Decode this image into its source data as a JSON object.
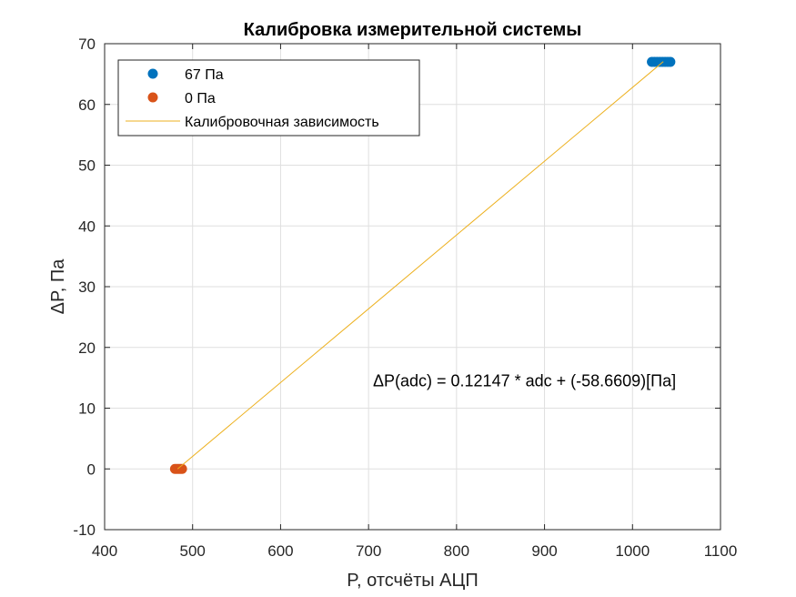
{
  "chart_data": {
    "type": "scatter",
    "title": "Калибровка измерительной системы",
    "xlabel": "P, отсчёты АЦП",
    "ylabel": "ΔP, Па",
    "xlim": [
      400,
      1100
    ],
    "ylim": [
      -10,
      70
    ],
    "xticks": [
      400,
      500,
      600,
      700,
      800,
      900,
      1000,
      1100
    ],
    "yticks": [
      -10,
      0,
      10,
      20,
      30,
      40,
      50,
      60,
      70
    ],
    "grid": true,
    "legend_position": "top-left",
    "series": [
      {
        "name": "67 Па",
        "kind": "scatter",
        "color": "#0072BD",
        "points": [
          [
            1022,
            67
          ],
          [
            1025,
            67
          ],
          [
            1028,
            67
          ],
          [
            1031,
            67
          ],
          [
            1034,
            67
          ],
          [
            1037,
            67
          ],
          [
            1040,
            67
          ],
          [
            1043,
            67
          ]
        ]
      },
      {
        "name": "0 Па",
        "kind": "scatter",
        "color": "#D95319",
        "points": [
          [
            480,
            0
          ],
          [
            482,
            0
          ],
          [
            484,
            0
          ],
          [
            486,
            0
          ],
          [
            488,
            0
          ]
        ]
      },
      {
        "name": "Калибровочная зависимость",
        "kind": "line",
        "color": "#EDB120",
        "points": [
          [
            483,
            0.0
          ],
          [
            1035,
            67.05
          ]
        ]
      }
    ],
    "annotation": {
      "text": "ΔP(adc) = 0.12147 * adc + (-58.6609)[Па]",
      "x": 705,
      "y": 14.5
    }
  }
}
